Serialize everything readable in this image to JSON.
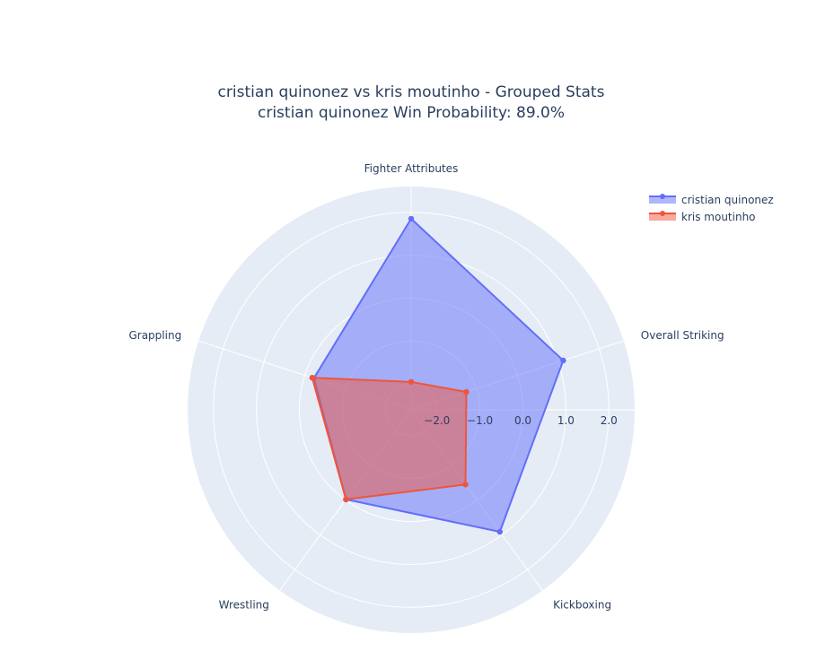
{
  "chart_data": {
    "type": "radar",
    "title": [
      "cristian quinonez vs kris moutinho - Grouped Stats",
      "cristian quinonez Win Probability: 89.0%"
    ],
    "categories": [
      "Fighter Attributes",
      "Overall Striking",
      "Kickboxing",
      "Wrestling",
      "Grappling"
    ],
    "radial_range": [
      -2.6,
      2.6
    ],
    "radial_ticks": [
      -2,
      -1,
      0,
      1,
      2
    ],
    "radial_tick_labels": [
      "−2.0",
      "−1.0",
      "0.0",
      "1.0",
      "2.0"
    ],
    "grid": true,
    "legend_position": "top-right",
    "series": [
      {
        "name": "cristian quinonez",
        "color": "#636efa",
        "values": [
          1.85,
          1.12,
          0.91,
          -0.02,
          -0.22
        ]
      },
      {
        "name": "kris moutinho",
        "color": "#ef553b",
        "values": [
          -1.95,
          -1.25,
          -0.45,
          -0.02,
          -0.18
        ]
      }
    ]
  }
}
